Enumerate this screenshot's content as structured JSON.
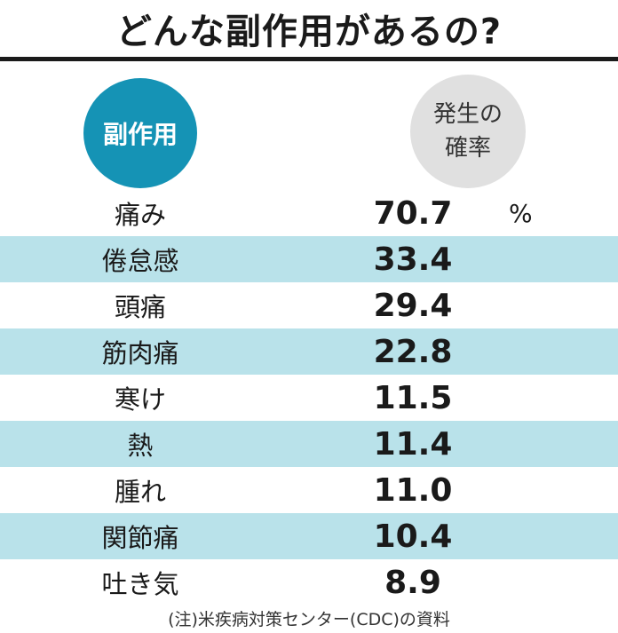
{
  "title": "どんな副作用があるの?",
  "header": {
    "left_label": "副作用",
    "right_label_line1": "発生の",
    "right_label_line2": "確率"
  },
  "unit": "%",
  "source": "(注)米疾病対策センター(CDC)の資料",
  "colors": {
    "left_circle": "#1593b5",
    "right_circle": "#e0e0e0",
    "band": "#b9e2ea"
  },
  "chart_data": {
    "type": "table",
    "title": "どんな副作用があるの?",
    "columns": [
      "副作用",
      "発生の確率"
    ],
    "rows": [
      {
        "label": "痛み",
        "value": "70.7"
      },
      {
        "label": "倦怠感",
        "value": "33.4"
      },
      {
        "label": "頭痛",
        "value": "29.4"
      },
      {
        "label": "筋肉痛",
        "value": "22.8"
      },
      {
        "label": "寒け",
        "value": "11.5"
      },
      {
        "label": "熱",
        "value": "11.4"
      },
      {
        "label": "腫れ",
        "value": "11.0"
      },
      {
        "label": "関節痛",
        "value": "10.4"
      },
      {
        "label": "吐き気",
        "value": "8.9"
      }
    ]
  }
}
